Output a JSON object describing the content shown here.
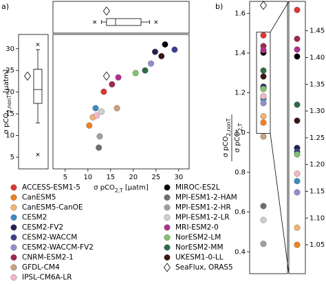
{
  "chart_data": [
    {
      "type": "scatter",
      "panel_label": "a)",
      "x_label": [
        "σ pCO",
        "2,T",
        " [μatm]"
      ],
      "y_label": [
        "σ pCO",
        "2,nonT",
        " [μatm]"
      ],
      "xlim": [
        2.3,
        32.3
      ],
      "ylim": [
        2.3,
        33.3
      ],
      "xticks": [
        5,
        10,
        15,
        20,
        25,
        30
      ],
      "yticks": [
        5,
        10,
        15,
        20,
        25,
        30
      ],
      "series": [
        {
          "name": "ACCESS-ESM1-5",
          "color": "#e3342f",
          "x": 13.5,
          "y": 20.1
        },
        {
          "name": "CanESM5",
          "color": "#f0821e",
          "x": 10.3,
          "y": 12.3
        },
        {
          "name": "CanESM5-CanOE",
          "color": "#f6b26b",
          "x": 11.1,
          "y": 14.2
        },
        {
          "name": "CESM2",
          "color": "#3b8bc2",
          "x": 11.7,
          "y": 16.3
        },
        {
          "name": "CESM2-FV2",
          "color": "#232055",
          "x": 24.8,
          "y": 29.3
        },
        {
          "name": "CESM2-WACCM",
          "color": "#3c3f8f",
          "x": 29.1,
          "y": 29.8
        },
        {
          "name": "CESM2-WACCM-FV2",
          "color": "#8e8fd0",
          "x": 23.9,
          "y": 26.6
        },
        {
          "name": "CNRM-ESM2-1",
          "color": "#a3264f",
          "x": 15.3,
          "y": 21.8
        },
        {
          "name": "GFDL-CM4",
          "color": "#c9a27e",
          "x": 16.4,
          "y": 16.3
        },
        {
          "name": "IPSL-CM6A-LR",
          "color": "#f4b8c3",
          "x": 11.9,
          "y": 14.6
        },
        {
          "name": "MIROC-ES2L",
          "color": "#000000",
          "x": 27.0,
          "y": 31.0
        },
        {
          "name": "MPI-ESM1-2-HAM",
          "color": "#6e6e6e",
          "x": 12.4,
          "y": 7.2
        },
        {
          "name": "MPI-ESM1-2-HR",
          "color": "#a0a0a0",
          "x": 12.6,
          "y": 9.8
        },
        {
          "name": "MPI-ESM1-2-LR",
          "color": "#cfcfcf",
          "x": 13.0,
          "y": 15.5
        },
        {
          "name": "MRI-ESM2-0",
          "color": "#b02f8c",
          "x": 16.7,
          "y": 23.4
        },
        {
          "name": "NorESM2-LM",
          "color": "#82c36c",
          "x": 20.5,
          "y": 24.4
        },
        {
          "name": "NorESM2-MM",
          "color": "#2e6b47",
          "x": 22.6,
          "y": 25.0
        },
        {
          "name": "UKESM1-0-LL",
          "color": "#3d1414",
          "x": 26.2,
          "y": 28.3
        }
      ],
      "reference": {
        "name": "SeaFlux, ORAS5",
        "x": 14.1,
        "y": 23.7
      },
      "x_box": {
        "whiskers": [
          13.0,
          23.6
        ],
        "quartiles": [
          14.1,
          21.7
        ],
        "median": 16.1,
        "fliers": [
          11.5,
          25.0
        ]
      },
      "y_box": {
        "whiskers": [
          12.9,
          29.8
        ],
        "quartiles": [
          17.4,
          25.3
        ],
        "median": 20.6,
        "fliers": [
          5.6,
          31.0
        ]
      }
    },
    {
      "type": "strip",
      "panel_label": "b)",
      "y_label_numerator": [
        "σ pCO",
        "2,nonT"
      ],
      "y_label_denominator": [
        "σ pCO",
        "2,T"
      ],
      "ylim": [
        0.29,
        1.66
      ],
      "yticks": [
        0.4,
        0.6,
        0.8,
        {
          "value": 1.0,
          "label": "1.0"
        },
        1.2,
        1.4,
        1.6
      ],
      "values": [
        1.489,
        1.05,
        1.082,
        1.169,
        1.231,
        1.224,
        1.148,
        1.435,
        0.98,
        1.183,
        1.402,
        0.63,
        0.44,
        0.56,
        1.415,
        1.219,
        1.312,
        1.282
      ],
      "reference_value": 1.64,
      "inset_ylim": [
        0.996,
        1.505
      ],
      "inset_yticks": [
        1.05,
        {
          "value": 1.1,
          "label": "1.10"
        },
        1.15,
        {
          "value": 1.2,
          "label": "1.20"
        },
        1.25,
        {
          "value": 1.3,
          "label": "1.30"
        },
        1.35,
        {
          "value": 1.4,
          "label": "1.40"
        },
        1.45
      ]
    }
  ]
}
